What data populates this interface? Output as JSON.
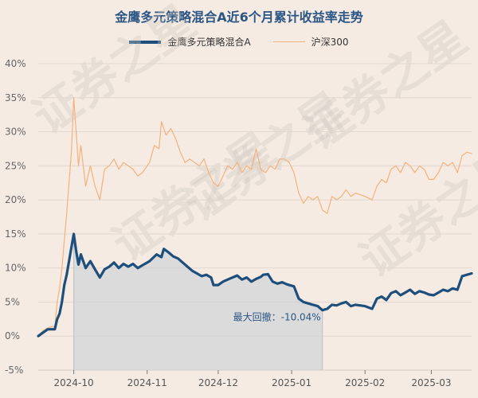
{
  "chart_data": {
    "type": "line",
    "title": "金鹰多元策略混合A近6个月累计收益率走势",
    "ylim": [
      -5,
      40
    ],
    "yticks": [
      -5,
      0,
      5,
      10,
      15,
      20,
      25,
      30,
      35,
      40
    ],
    "ytick_labels": [
      "-5%",
      "0%",
      "5%",
      "10%",
      "15%",
      "20%",
      "25%",
      "30%",
      "35%",
      "40%"
    ],
    "xlim": [
      "2024-09-16",
      "2025-03-18"
    ],
    "xticks": [
      "2024-10-01",
      "2024-11-01",
      "2024-12-01",
      "2025-01-01",
      "2025-02-01",
      "2025-03-01"
    ],
    "xtick_labels": [
      "2024-10",
      "2024-11",
      "2024-12",
      "2025-01",
      "2025-02",
      "2025-03"
    ],
    "grid": true,
    "legend": "top-center",
    "series": [
      {
        "name": "金鹰多元策略混合A",
        "color": "#1e4f7c",
        "points": [
          [
            "2024-09-16",
            0
          ],
          [
            "2024-09-18",
            0.5
          ],
          [
            "2024-09-20",
            1.0
          ],
          [
            "2024-09-23",
            1.0
          ],
          [
            "2024-09-24",
            2.5
          ],
          [
            "2024-09-25",
            3.3
          ],
          [
            "2024-09-26",
            5.0
          ],
          [
            "2024-09-27",
            7.5
          ],
          [
            "2024-09-28",
            9.0
          ],
          [
            "2024-09-30",
            13.0
          ],
          [
            "2024-10-01",
            15.0
          ],
          [
            "2024-10-02",
            12.5
          ],
          [
            "2024-10-03",
            10.5
          ],
          [
            "2024-10-04",
            12.0
          ],
          [
            "2024-10-06",
            10.0
          ],
          [
            "2024-10-08",
            11.0
          ],
          [
            "2024-10-10",
            9.8
          ],
          [
            "2024-10-12",
            8.6
          ],
          [
            "2024-10-14",
            9.8
          ],
          [
            "2024-10-16",
            10.2
          ],
          [
            "2024-10-18",
            10.8
          ],
          [
            "2024-10-20",
            10.0
          ],
          [
            "2024-10-22",
            10.6
          ],
          [
            "2024-10-24",
            10.2
          ],
          [
            "2024-10-26",
            10.6
          ],
          [
            "2024-10-28",
            10.0
          ],
          [
            "2024-10-30",
            10.4
          ],
          [
            "2024-11-02",
            11.0
          ],
          [
            "2024-11-05",
            12.0
          ],
          [
            "2024-11-07",
            11.6
          ],
          [
            "2024-11-08",
            12.8
          ],
          [
            "2024-11-10",
            12.3
          ],
          [
            "2024-11-12",
            11.7
          ],
          [
            "2024-11-14",
            11.4
          ],
          [
            "2024-11-16",
            10.8
          ],
          [
            "2024-11-18",
            10.2
          ],
          [
            "2024-11-20",
            9.6
          ],
          [
            "2024-11-22",
            9.2
          ],
          [
            "2024-11-24",
            8.8
          ],
          [
            "2024-11-26",
            9.0
          ],
          [
            "2024-11-28",
            8.6
          ],
          [
            "2024-11-29",
            7.5
          ],
          [
            "2024-12-01",
            7.5
          ],
          [
            "2024-12-03",
            8.0
          ],
          [
            "2024-12-05",
            8.3
          ],
          [
            "2024-12-07",
            8.6
          ],
          [
            "2024-12-09",
            8.9
          ],
          [
            "2024-12-11",
            8.3
          ],
          [
            "2024-12-13",
            8.6
          ],
          [
            "2024-12-15",
            8.0
          ],
          [
            "2024-12-17",
            8.4
          ],
          [
            "2024-12-19",
            8.7
          ],
          [
            "2024-12-20",
            9.0
          ],
          [
            "2024-12-22",
            9.1
          ],
          [
            "2024-12-24",
            8.0
          ],
          [
            "2024-12-26",
            7.7
          ],
          [
            "2024-12-28",
            7.9
          ],
          [
            "2024-12-30",
            7.6
          ],
          [
            "2025-01-02",
            7.3
          ],
          [
            "2025-01-04",
            5.5
          ],
          [
            "2025-01-06",
            5.0
          ],
          [
            "2025-01-08",
            4.8
          ],
          [
            "2025-01-10",
            4.6
          ],
          [
            "2025-01-12",
            4.4
          ],
          [
            "2025-01-14",
            3.8
          ],
          [
            "2025-01-16",
            4.0
          ],
          [
            "2025-01-18",
            4.6
          ],
          [
            "2025-01-20",
            4.5
          ],
          [
            "2025-01-22",
            4.8
          ],
          [
            "2025-01-24",
            5.0
          ],
          [
            "2025-01-26",
            4.4
          ],
          [
            "2025-01-28",
            4.6
          ],
          [
            "2025-02-01",
            4.4
          ],
          [
            "2025-02-04",
            4.0
          ],
          [
            "2025-02-06",
            5.5
          ],
          [
            "2025-02-08",
            5.8
          ],
          [
            "2025-02-10",
            5.3
          ],
          [
            "2025-02-12",
            6.3
          ],
          [
            "2025-02-14",
            6.6
          ],
          [
            "2025-02-16",
            6.0
          ],
          [
            "2025-02-18",
            6.4
          ],
          [
            "2025-02-20",
            6.8
          ],
          [
            "2025-02-22",
            6.2
          ],
          [
            "2025-02-24",
            6.6
          ],
          [
            "2025-02-26",
            6.4
          ],
          [
            "2025-02-28",
            6.1
          ],
          [
            "2025-03-02",
            6.0
          ],
          [
            "2025-03-04",
            6.4
          ],
          [
            "2025-03-06",
            6.8
          ],
          [
            "2025-03-08",
            6.6
          ],
          [
            "2025-03-10",
            7.0
          ],
          [
            "2025-03-12",
            6.8
          ],
          [
            "2025-03-14",
            8.8
          ],
          [
            "2025-03-16",
            9.0
          ],
          [
            "2025-03-18",
            9.2
          ]
        ]
      },
      {
        "name": "沪深300",
        "color": "#f3b27c",
        "points": [
          [
            "2024-09-16",
            0
          ],
          [
            "2024-09-18",
            0.8
          ],
          [
            "2024-09-20",
            1.2
          ],
          [
            "2024-09-23",
            1.5
          ],
          [
            "2024-09-24",
            5.0
          ],
          [
            "2024-09-25",
            7.0
          ],
          [
            "2024-09-26",
            10.0
          ],
          [
            "2024-09-27",
            14.0
          ],
          [
            "2024-09-28",
            18.0
          ],
          [
            "2024-09-30",
            27.0
          ],
          [
            "2024-10-01",
            35.0
          ],
          [
            "2024-10-02",
            30.0
          ],
          [
            "2024-10-03",
            25.0
          ],
          [
            "2024-10-04",
            28.0
          ],
          [
            "2024-10-06",
            22.0
          ],
          [
            "2024-10-08",
            25.0
          ],
          [
            "2024-10-10",
            22.0
          ],
          [
            "2024-10-12",
            20.0
          ],
          [
            "2024-10-14",
            24.5
          ],
          [
            "2024-10-16",
            25.0
          ],
          [
            "2024-10-18",
            26.0
          ],
          [
            "2024-10-20",
            24.5
          ],
          [
            "2024-10-22",
            25.5
          ],
          [
            "2024-10-24",
            25.0
          ],
          [
            "2024-10-26",
            24.5
          ],
          [
            "2024-10-28",
            23.5
          ],
          [
            "2024-10-30",
            24.0
          ],
          [
            "2024-11-02",
            25.5
          ],
          [
            "2024-11-04",
            28.0
          ],
          [
            "2024-11-06",
            27.5
          ],
          [
            "2024-11-07",
            31.5
          ],
          [
            "2024-11-09",
            29.5
          ],
          [
            "2024-11-11",
            30.5
          ],
          [
            "2024-11-13",
            29.0
          ],
          [
            "2024-11-15",
            27.0
          ],
          [
            "2024-11-17",
            25.5
          ],
          [
            "2024-11-19",
            26.0
          ],
          [
            "2024-11-21",
            25.5
          ],
          [
            "2024-11-23",
            25.0
          ],
          [
            "2024-11-25",
            26.0
          ],
          [
            "2024-11-27",
            24.0
          ],
          [
            "2024-11-29",
            22.5
          ],
          [
            "2024-12-01",
            22.0
          ],
          [
            "2024-12-03",
            23.5
          ],
          [
            "2024-12-05",
            25.0
          ],
          [
            "2024-12-07",
            24.5
          ],
          [
            "2024-12-09",
            25.5
          ],
          [
            "2024-12-11",
            24.0
          ],
          [
            "2024-12-13",
            25.0
          ],
          [
            "2024-12-15",
            24.5
          ],
          [
            "2024-12-17",
            27.5
          ],
          [
            "2024-12-19",
            24.5
          ],
          [
            "2024-12-21",
            24.0
          ],
          [
            "2024-12-23",
            25.0
          ],
          [
            "2024-12-25",
            24.5
          ],
          [
            "2024-12-27",
            26.0
          ],
          [
            "2024-12-29",
            26.0
          ],
          [
            "2024-12-31",
            25.5
          ],
          [
            "2025-01-02",
            24.0
          ],
          [
            "2025-01-04",
            21.0
          ],
          [
            "2025-01-06",
            19.5
          ],
          [
            "2025-01-08",
            20.5
          ],
          [
            "2025-01-10",
            20.0
          ],
          [
            "2025-01-12",
            20.5
          ],
          [
            "2025-01-14",
            18.5
          ],
          [
            "2025-01-16",
            18.0
          ],
          [
            "2025-01-18",
            20.5
          ],
          [
            "2025-01-20",
            20.0
          ],
          [
            "2025-01-22",
            20.5
          ],
          [
            "2025-01-24",
            21.5
          ],
          [
            "2025-01-26",
            20.5
          ],
          [
            "2025-01-28",
            21.0
          ],
          [
            "2025-02-01",
            20.5
          ],
          [
            "2025-02-04",
            20.0
          ],
          [
            "2025-02-06",
            22.0
          ],
          [
            "2025-02-08",
            23.0
          ],
          [
            "2025-02-10",
            22.5
          ],
          [
            "2025-02-12",
            24.5
          ],
          [
            "2025-02-14",
            25.0
          ],
          [
            "2025-02-16",
            24.0
          ],
          [
            "2025-02-18",
            25.5
          ],
          [
            "2025-02-20",
            25.0
          ],
          [
            "2025-02-22",
            24.0
          ],
          [
            "2025-02-24",
            25.0
          ],
          [
            "2025-02-26",
            24.5
          ],
          [
            "2025-02-28",
            23.0
          ],
          [
            "2025-03-02",
            23.0
          ],
          [
            "2025-03-04",
            24.0
          ],
          [
            "2025-03-06",
            25.5
          ],
          [
            "2025-03-08",
            25.0
          ],
          [
            "2025-03-10",
            25.5
          ],
          [
            "2025-03-12",
            24.0
          ],
          [
            "2025-03-14",
            26.5
          ],
          [
            "2025-03-16",
            27.0
          ],
          [
            "2025-03-18",
            26.8
          ]
        ]
      }
    ],
    "drawdown": {
      "label": "最大回撤：-10.04%",
      "start": "2024-10-01",
      "end": "2025-01-14"
    },
    "watermark": "证券之星"
  }
}
